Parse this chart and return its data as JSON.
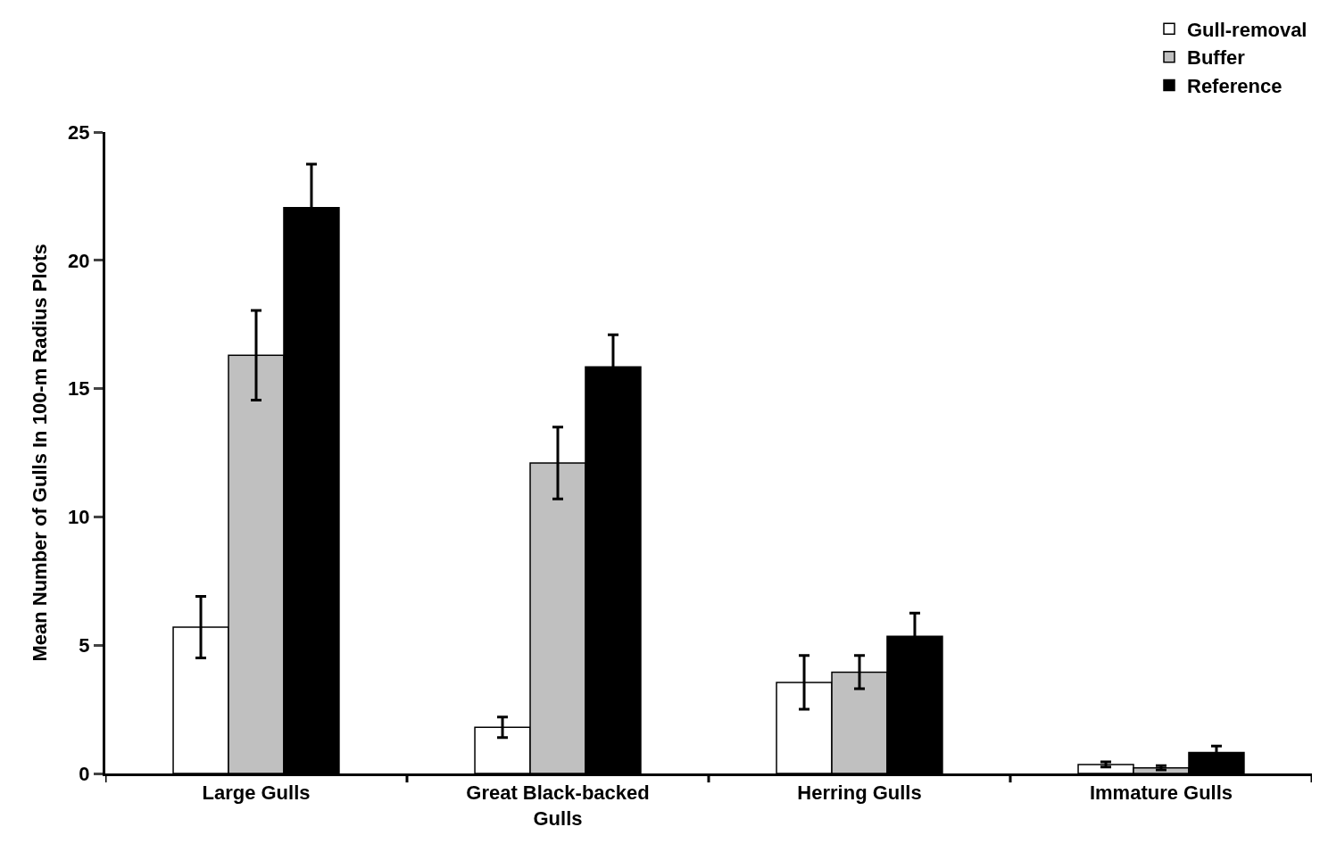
{
  "chart_data": {
    "type": "bar",
    "ylabel": "Mean Number of Gulls In 100-m Radius Plots",
    "categories": [
      "Large Gulls",
      "Great Black-backed Gulls",
      "Herring Gulls",
      "Immature Gulls"
    ],
    "series": [
      {
        "name": "Gull-removal",
        "color": "#ffffff",
        "values": [
          5.7,
          1.8,
          3.55,
          0.35
        ],
        "errors": [
          1.2,
          0.4,
          1.05,
          0.1
        ]
      },
      {
        "name": "Buffer",
        "color": "#c0c0c0",
        "values": [
          16.3,
          12.1,
          3.95,
          0.22
        ],
        "errors": [
          1.75,
          1.4,
          0.65,
          0.08
        ]
      },
      {
        "name": "Reference",
        "color": "#000000",
        "values": [
          22.05,
          15.85,
          5.35,
          0.82
        ],
        "errors": [
          1.7,
          1.25,
          0.9,
          0.25
        ]
      }
    ],
    "ylim": [
      0,
      25
    ],
    "yticks": [
      0,
      5,
      10,
      15,
      20,
      25
    ],
    "grid": false,
    "legend": "top right"
  }
}
